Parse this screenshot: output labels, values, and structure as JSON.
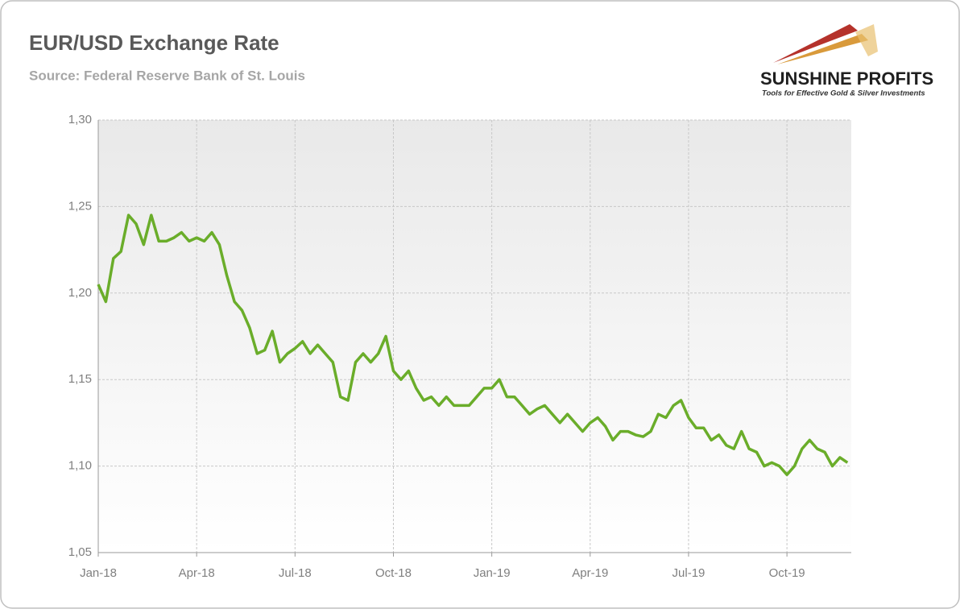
{
  "logo": {
    "name": "SUNSHINE PROFITS",
    "tagline": "Tools for Effective Gold & Silver Investments"
  },
  "chart_data": {
    "type": "line",
    "title": "EUR/USD Exchange Rate",
    "subtitle": "Source: Federal Reserve Bank of St. Louis",
    "categories": [
      "Jan-18",
      null,
      null,
      null,
      null,
      null,
      null,
      null,
      null,
      null,
      null,
      null,
      null,
      "Apr-18",
      null,
      null,
      null,
      null,
      null,
      null,
      null,
      null,
      null,
      null,
      null,
      null,
      "Jul-18",
      null,
      null,
      null,
      null,
      null,
      null,
      null,
      null,
      null,
      null,
      null,
      null,
      "Oct-18",
      null,
      null,
      null,
      null,
      null,
      null,
      null,
      null,
      null,
      null,
      null,
      null,
      "Jan-19",
      null,
      null,
      null,
      null,
      null,
      null,
      null,
      null,
      null,
      null,
      null,
      null,
      "Apr-19",
      null,
      null,
      null,
      null,
      null,
      null,
      null,
      null,
      null,
      null,
      null,
      null,
      "Jul-19",
      null,
      null,
      null,
      null,
      null,
      null,
      null,
      null,
      null,
      null,
      null,
      null,
      "Oct-19",
      null,
      null,
      null,
      null,
      null,
      null,
      null,
      null
    ],
    "series": [
      {
        "name": "EUR/USD",
        "color": "#6aad2a",
        "values": [
          1.205,
          1.195,
          1.22,
          1.224,
          1.245,
          1.24,
          1.228,
          1.245,
          1.23,
          1.23,
          1.232,
          1.235,
          1.23,
          1.232,
          1.23,
          1.235,
          1.228,
          1.21,
          1.195,
          1.19,
          1.18,
          1.165,
          1.167,
          1.178,
          1.16,
          1.165,
          1.168,
          1.172,
          1.165,
          1.17,
          1.165,
          1.16,
          1.14,
          1.138,
          1.16,
          1.165,
          1.16,
          1.165,
          1.175,
          1.155,
          1.15,
          1.155,
          1.145,
          1.138,
          1.14,
          1.135,
          1.14,
          1.135,
          1.135,
          1.135,
          1.14,
          1.145,
          1.145,
          1.15,
          1.14,
          1.14,
          1.135,
          1.13,
          1.133,
          1.135,
          1.13,
          1.125,
          1.13,
          1.125,
          1.12,
          1.125,
          1.128,
          1.123,
          1.115,
          1.12,
          1.12,
          1.118,
          1.117,
          1.12,
          1.13,
          1.128,
          1.135,
          1.138,
          1.128,
          1.122,
          1.122,
          1.115,
          1.118,
          1.112,
          1.11,
          1.12,
          1.11,
          1.108,
          1.1,
          1.102,
          1.1,
          1.095,
          1.1,
          1.11,
          1.115,
          1.11,
          1.108,
          1.1,
          1.105,
          1.102
        ]
      }
    ],
    "ylim": [
      1.05,
      1.3
    ],
    "yticks": [
      {
        "value": 1.05,
        "label": "1,05"
      },
      {
        "value": 1.1,
        "label": "1,10"
      },
      {
        "value": 1.15,
        "label": "1,15"
      },
      {
        "value": 1.2,
        "label": "1,20"
      },
      {
        "value": 1.25,
        "label": "1,25"
      },
      {
        "value": 1.3,
        "label": "1,30"
      }
    ],
    "grid": true
  }
}
